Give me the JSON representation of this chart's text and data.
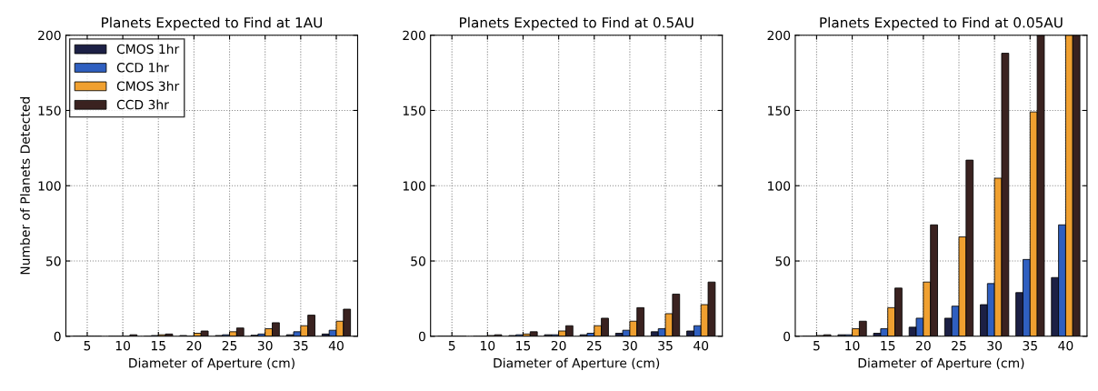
{
  "chart_data": [
    {
      "type": "bar",
      "title": "Planets Expected to Find at 1AU",
      "xlabel": "Diameter of Aperture (cm)",
      "ylabel": "Number of Planets Detected",
      "categories": [
        "5",
        "10",
        "15",
        "20",
        "25",
        "30",
        "35",
        "40"
      ],
      "ylim": [
        0,
        200
      ],
      "yticks": [
        0,
        50,
        100,
        150,
        200
      ],
      "grid": true,
      "legend": "top left",
      "series": [
        {
          "name": "CMOS 1hr",
          "color": "#1c2045",
          "values": [
            0,
            0,
            null,
            0.5,
            0.5,
            0.7,
            1,
            1.5
          ]
        },
        {
          "name": "CCD 1hr",
          "color": "#2f5fc0",
          "values": [
            0,
            null,
            0.5,
            null,
            1,
            1.5,
            3,
            4
          ]
        },
        {
          "name": "CMOS 3hr",
          "color": "#f0a030",
          "values": [
            0,
            null,
            1,
            2,
            3,
            5,
            7,
            10
          ]
        },
        {
          "name": "CCD 3hr",
          "color": "#3a2220",
          "values": [
            0,
            1,
            1.5,
            3.5,
            5.5,
            9,
            14,
            18
          ]
        }
      ]
    },
    {
      "type": "bar",
      "title": "Planets Expected to Find at 0.5AU",
      "xlabel": "Diameter of Aperture (cm)",
      "categories": [
        "5",
        "10",
        "15",
        "20",
        "25",
        "30",
        "35",
        "40"
      ],
      "ylim": [
        0,
        200
      ],
      "yticks": [
        0,
        50,
        100,
        150,
        200
      ],
      "grid": true,
      "series": [
        {
          "color": "#1c2045",
          "values": [
            0,
            0,
            0.5,
            1,
            1,
            2,
            3,
            3.5
          ]
        },
        {
          "color": "#2f5fc0",
          "values": [
            0,
            null,
            1,
            1,
            2,
            4,
            5,
            7
          ]
        },
        {
          "color": "#f0a030",
          "values": [
            0,
            0.5,
            1.5,
            3.5,
            7,
            10,
            15,
            21
          ]
        },
        {
          "color": "#3a2220",
          "values": [
            0,
            1,
            3,
            7,
            12,
            19,
            28,
            36
          ]
        }
      ]
    },
    {
      "type": "bar",
      "title": "Planets Expected to Find at 0.05AU",
      "xlabel": "Diameter of Aperture (cm)",
      "categories": [
        "5",
        "10",
        "15",
        "20",
        "25",
        "30",
        "35",
        "40"
      ],
      "ylim": [
        0,
        200
      ],
      "yticks": [
        0,
        50,
        100,
        150,
        200
      ],
      "grid": true,
      "series": [
        {
          "color": "#1c2045",
          "values": [
            0,
            1,
            2,
            6,
            12,
            21,
            29,
            39
          ]
        },
        {
          "color": "#2f5fc0",
          "values": [
            0,
            1,
            5,
            12,
            20,
            35,
            51,
            74
          ]
        },
        {
          "color": "#f0a030",
          "values": [
            0.5,
            5,
            19,
            36,
            66,
            105,
            149,
            200
          ]
        },
        {
          "color": "#3a2220",
          "values": [
            1,
            10,
            32,
            74,
            117,
            188,
            200,
            200
          ]
        }
      ]
    }
  ]
}
